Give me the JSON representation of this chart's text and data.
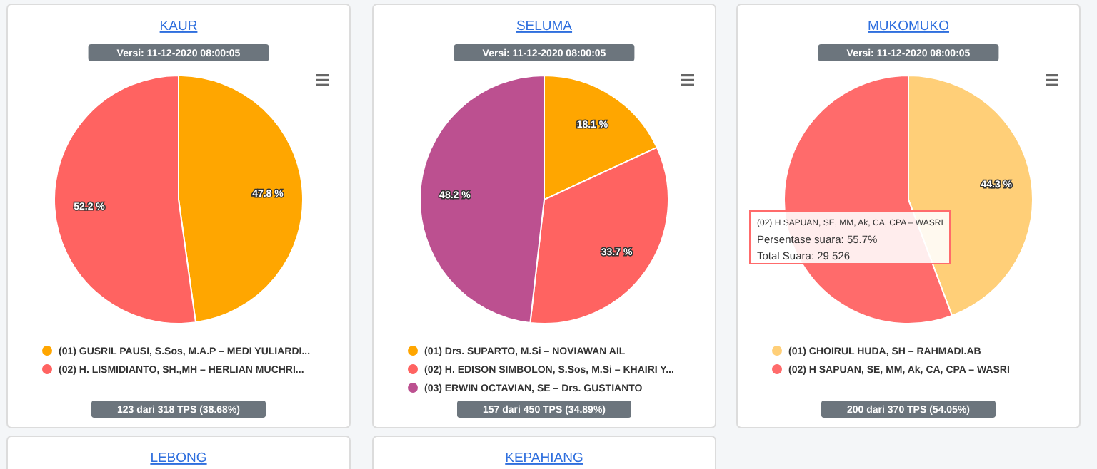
{
  "chart_data": [
    {
      "type": "pie",
      "title": "KAUR",
      "subtitle": "Versi: 11-12-2020 08:00:05",
      "categories": [
        "(01) GUSRIL PAUSI, S.Sos, M.A.P – MEDI YULIARDI...",
        "(02) H. LISMIDIANTO, SH.,MH – HERLIAN MUCHRI..."
      ],
      "values": [
        47.8,
        52.2
      ],
      "colors": [
        "#ffa600",
        "#ff6361"
      ],
      "value_labels": [
        "47.8 %",
        "52.2 %"
      ],
      "legend": "bottom",
      "annotations": [
        "123 dari 318 TPS (38.68%)"
      ]
    },
    {
      "type": "pie",
      "title": "SELUMA",
      "subtitle": "Versi: 11-12-2020 08:00:05",
      "categories": [
        "(01) Drs. SUPARTO, M.Si – NOVIAWAN AIL",
        "(02) H. EDISON SIMBOLON, S.Sos, M.Si – KHAIRI Y...",
        "(03) ERWIN OCTAVIAN, SE – Drs. GUSTIANTO"
      ],
      "values": [
        18.1,
        33.7,
        48.2
      ],
      "colors": [
        "#ffa600",
        "#ff6361",
        "#bc5090"
      ],
      "value_labels": [
        "18.1 %",
        "33.7 %",
        "48.2 %"
      ],
      "legend": "bottom",
      "annotations": [
        "157 dari 450 TPS (34.89%)"
      ]
    },
    {
      "type": "pie",
      "title": "MUKOMUKO",
      "subtitle": "Versi: 11-12-2020 08:00:05",
      "categories": [
        "(01) CHOIRUL HUDA, SH – RAHMADI.AB",
        "(02) H SAPUAN, SE, MM, Ak, CA, CPA – WASRI"
      ],
      "values": [
        44.3,
        55.7
      ],
      "colors": [
        "#ffcf78",
        "#ff6b6b"
      ],
      "value_labels": [
        "44.3 %",
        null
      ],
      "legend": "bottom",
      "annotations": [
        "200 dari 370 TPS (54.05%)",
        "(02) H SAPUAN, SE, MM, Ak, CA, CPA – WASRI",
        "Persentase suara: 55.7%",
        "Total Suara: 29 526"
      ]
    },
    {
      "type": "other",
      "title": "LEBONG"
    },
    {
      "type": "other",
      "title": "KEPAHIANG"
    }
  ]
}
